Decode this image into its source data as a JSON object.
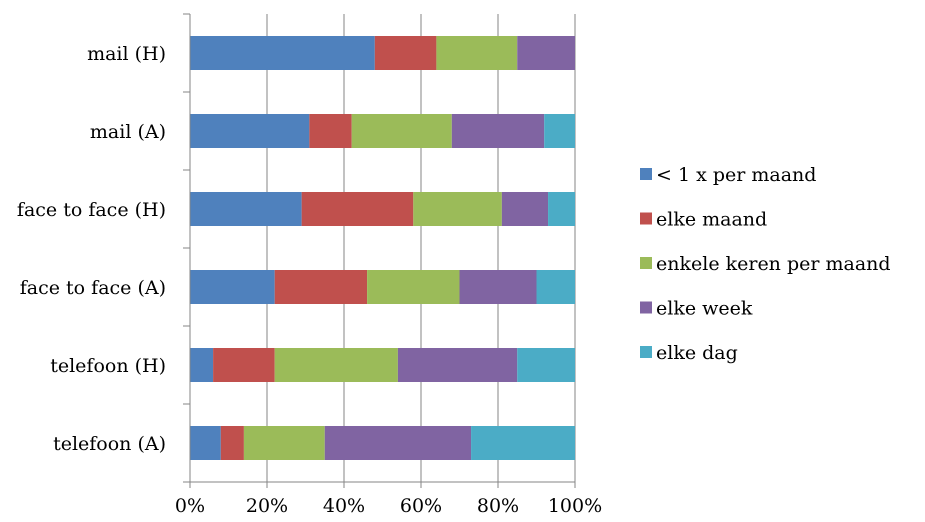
{
  "chart_data": {
    "type": "bar",
    "orientation": "horizontal",
    "stacked": "percent",
    "categories": [
      "mail (H)",
      "mail (A)",
      "face to face (H)",
      "face to face (A)",
      "telefoon (H)",
      "telefoon (A)"
    ],
    "series": [
      {
        "name": "< 1 x per maand",
        "color": "#4F81BD",
        "values": [
          48,
          31,
          29,
          22,
          6,
          8
        ]
      },
      {
        "name": "elke maand",
        "color": "#C0504D",
        "values": [
          16,
          11,
          29,
          24,
          16,
          6
        ]
      },
      {
        "name": "enkele keren per maand",
        "color": "#9BBB59",
        "values": [
          21,
          26,
          23,
          24,
          32,
          21
        ]
      },
      {
        "name": "elke week",
        "color": "#8064A2",
        "values": [
          15,
          24,
          12,
          20,
          31,
          38
        ]
      },
      {
        "name": "elke dag",
        "color": "#4BACC6",
        "values": [
          0,
          8,
          7,
          10,
          15,
          27
        ]
      }
    ],
    "xticks": [
      "0%",
      "20%",
      "40%",
      "60%",
      "80%",
      "100%"
    ],
    "xlim": [
      0,
      100
    ],
    "grid": "vertical",
    "legend_position": "right",
    "title": "",
    "xlabel": "",
    "ylabel": ""
  }
}
